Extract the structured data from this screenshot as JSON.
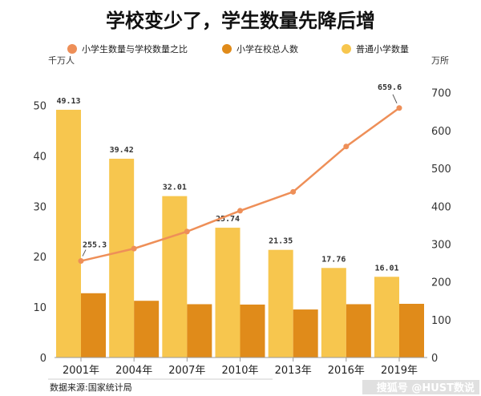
{
  "chart_data": {
    "type": "bar",
    "title": "学校变少了，学生数量先降后增",
    "categories": [
      "2001年",
      "2004年",
      "2007年",
      "2010年",
      "2013年",
      "2016年",
      "2019年"
    ],
    "series": [
      {
        "name": "普通小学数量",
        "type": "bar",
        "axis": "left",
        "color": "#F7C64E",
        "values": [
          49.13,
          39.42,
          32.01,
          25.74,
          21.35,
          17.76,
          16.01
        ],
        "labels": [
          "49.13",
          "39.42",
          "32.01",
          "25.74",
          "21.35",
          "17.76",
          "16.01"
        ]
      },
      {
        "name": "小学在校总人数",
        "type": "bar",
        "axis": "right",
        "color": "#E08B1A",
        "values": [
          170,
          150,
          141,
          140,
          127,
          141,
          142
        ]
      },
      {
        "name": "小学生数量与学校数量之比",
        "type": "line",
        "axis": "right",
        "color": "#EE8F58",
        "values": [
          255.3,
          288,
          333,
          388,
          438,
          558,
          659.6
        ],
        "labels": [
          "255.3",
          "659.6"
        ]
      }
    ],
    "left_axis": {
      "unit": "千万人",
      "ylim": [
        0,
        55
      ],
      "ticks": [
        "0",
        "10",
        "20",
        "30",
        "40",
        "50"
      ]
    },
    "right_axis": {
      "unit": "万所",
      "ylim": [
        0,
        733.3
      ],
      "ticks": [
        "0",
        "100",
        "200",
        "300",
        "400",
        "500",
        "600",
        "700"
      ]
    },
    "legend_position": "top",
    "grid": false
  },
  "source": "数据来源:国家统计局",
  "watermark": "搜狐号 @HUST数说"
}
